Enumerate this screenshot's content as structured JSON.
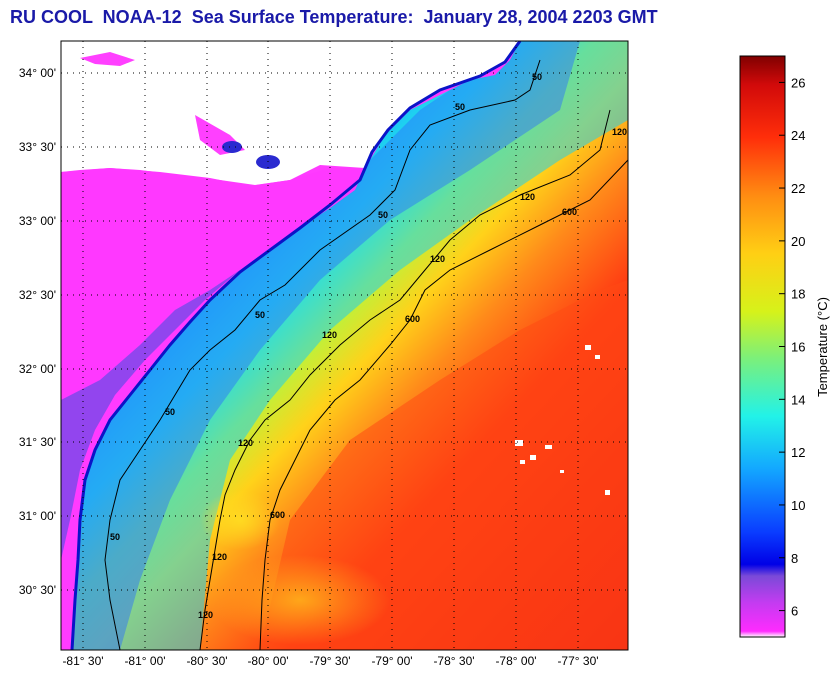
{
  "title": "RU COOL  NOAA-12  Sea Surface Temperature:  January 28, 2004 2203 GMT",
  "map": {
    "lat_labels": [
      "34° 00'",
      "33° 30'",
      "33° 00'",
      "32° 30'",
      "32° 00'",
      "31° 30'",
      "31° 00'",
      "30° 30'"
    ],
    "lon_labels": [
      "-81° 30'",
      "-81° 00'",
      "-80° 30'",
      "-80° 00'",
      "-79° 30'",
      "-79° 00'",
      "-78° 30'",
      "-78° 00'",
      "-77° 30'"
    ],
    "contour_labels": [
      "50",
      "50",
      "50",
      "50",
      "50",
      "50",
      "120",
      "120",
      "120",
      "120",
      "120",
      "120",
      "120",
      "600",
      "600",
      "600"
    ],
    "colors": {
      "land": "#ffffff",
      "grid": "#000000",
      "coast": "#0a1ad8"
    }
  },
  "colorbar": {
    "title": "Temperature (°C)",
    "ticks": [
      "6",
      "8",
      "10",
      "12",
      "14",
      "16",
      "18",
      "20",
      "22",
      "24",
      "26"
    ],
    "range": [
      5,
      27
    ]
  }
}
